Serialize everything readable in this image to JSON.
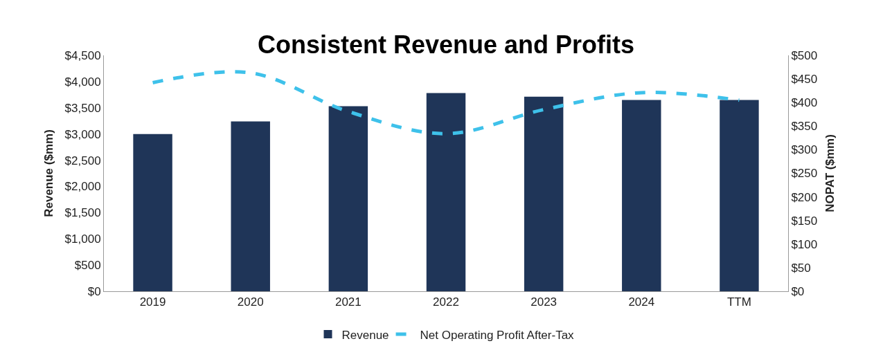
{
  "chart_data": {
    "type": "bar",
    "title": "Consistent Revenue and Profits",
    "ylabel": "Revenue ($mm)",
    "y2label": "NOPAT ($mm)",
    "categories": [
      "2019",
      "2020",
      "2021",
      "2022",
      "2023",
      "2024",
      "TTM"
    ],
    "series": [
      {
        "name": "Revenue",
        "color": "#1f3558",
        "values": [
          3000,
          3240,
          3530,
          3780,
          3710,
          3650,
          3650
        ]
      },
      {
        "name": "Net Operating Profit After-Tax",
        "type": "line",
        "axis": "y2",
        "color": "#3ec1ea",
        "line_style": "dashed",
        "values": [
          442,
          463,
          381,
          334,
          385,
          421,
          405
        ]
      }
    ],
    "ylim": [
      0,
      4500
    ],
    "yticks": [
      {
        "value": 0,
        "label": "$0"
      },
      {
        "value": 500,
        "label": "$500"
      },
      {
        "value": 1000,
        "label": "$1,000"
      },
      {
        "value": 1500,
        "label": "$1,500"
      },
      {
        "value": 2000,
        "label": "$2,000"
      },
      {
        "value": 2500,
        "label": "$2,500"
      },
      {
        "value": 3000,
        "label": "$3,000"
      },
      {
        "value": 3500,
        "label": "$3,500"
      },
      {
        "value": 4000,
        "label": "$4,000"
      },
      {
        "value": 4500,
        "label": "$4,500"
      }
    ],
    "y2lim": [
      0,
      500
    ],
    "y2ticks": [
      {
        "value": 0,
        "label": "$0"
      },
      {
        "value": 50,
        "label": "$50"
      },
      {
        "value": 100,
        "label": "$100"
      },
      {
        "value": 150,
        "label": "$150"
      },
      {
        "value": 200,
        "label": "$200"
      },
      {
        "value": 250,
        "label": "$250"
      },
      {
        "value": 300,
        "label": "$300"
      },
      {
        "value": 350,
        "label": "$350"
      },
      {
        "value": 400,
        "label": "$400"
      },
      {
        "value": 450,
        "label": "$450"
      },
      {
        "value": 500,
        "label": "$500"
      }
    ],
    "grid": false,
    "legend": "bottom",
    "marker": "none"
  }
}
